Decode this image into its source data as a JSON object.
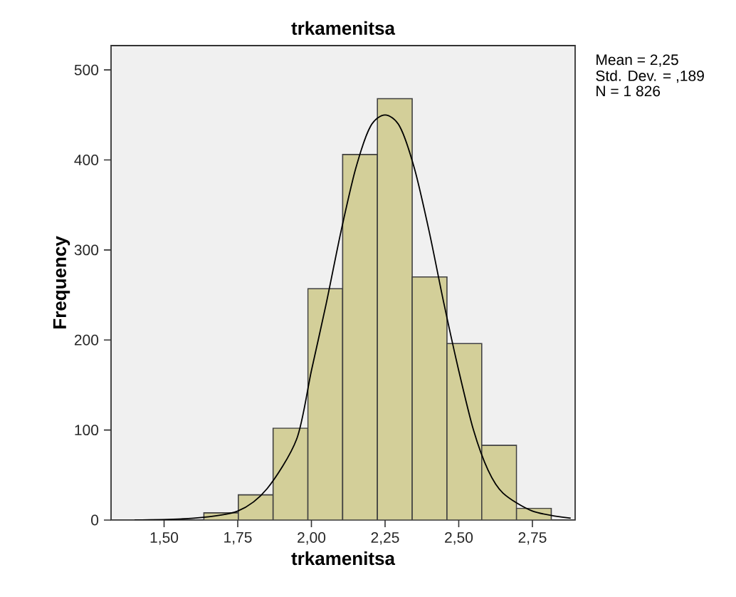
{
  "chart_data": {
    "type": "histogram",
    "title": "trkamenitsa",
    "xlabel": "trkamenitsa",
    "ylabel": "Frequency",
    "color": "#d3cf99",
    "bins": [
      1.635,
      1.752,
      1.87,
      1.988,
      2.106,
      2.224,
      2.342,
      2.46,
      2.578,
      2.696,
      2.814
    ],
    "values": [
      8,
      28,
      102,
      257,
      406,
      468,
      270,
      196,
      83,
      13
    ],
    "series": [
      {
        "type": "line",
        "color": "#000000",
        "x": [
          1.4,
          1.6,
          1.75,
          1.85,
          1.95,
          2.0,
          2.05,
          2.1,
          2.15,
          2.2,
          2.25,
          2.3,
          2.35,
          2.4,
          2.45,
          2.5,
          2.55,
          2.6,
          2.65,
          2.75,
          2.88
        ],
        "values": [
          0,
          2,
          10,
          35,
          90,
          166,
          240,
          320,
          390,
          437,
          450,
          437,
          390,
          320,
          240,
          166,
          100,
          55,
          30,
          10,
          2
        ]
      }
    ],
    "xlim": [
      1.32,
      2.895
    ],
    "ylim": [
      0,
      527
    ],
    "xticks": [
      {
        "value": 1.5,
        "label": "1,50"
      },
      {
        "value": 1.75,
        "label": "1,75"
      },
      {
        "value": 2.0,
        "label": "2,00"
      },
      {
        "value": 2.25,
        "label": "2,25"
      },
      {
        "value": 2.5,
        "label": "2,50"
      },
      {
        "value": 2.75,
        "label": "2,75"
      }
    ],
    "yticks": [
      0,
      100,
      200,
      300,
      400,
      500
    ],
    "annotations": [
      "Mean = 2,25",
      "Std. Dev. = ,189",
      "N = 1 826"
    ]
  }
}
